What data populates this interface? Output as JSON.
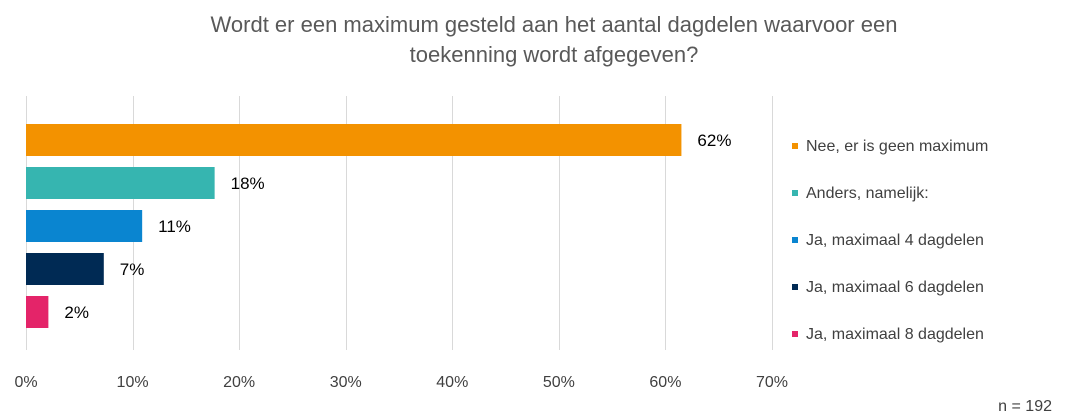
{
  "chart_data": {
    "type": "bar",
    "orientation": "horizontal",
    "title_lines": [
      "Wordt er een maximum gesteld aan het aantal dagdelen waarvoor een",
      "toekenning wordt afgegeven?"
    ],
    "categories": [
      "Nee, er is geen maximum",
      "Anders, namelijk:",
      "Ja, maximaal 4 dagdelen",
      "Ja, maximaal 6 dagdelen",
      "Ja, maximaal 8 dagdelen"
    ],
    "values": [
      61.5,
      17.7,
      10.9,
      7.3,
      2.1
    ],
    "data_labels": [
      "62%",
      "18%",
      "11%",
      "7%",
      "2%"
    ],
    "colors": [
      "#F39200",
      "#36B5B0",
      "#0A85D0",
      "#002A54",
      "#E42469"
    ],
    "xlim": [
      0,
      70
    ],
    "xticks": [
      0,
      10,
      20,
      30,
      40,
      50,
      60,
      70
    ],
    "xtick_labels": [
      "0%",
      "10%",
      "20%",
      "30%",
      "40%",
      "50%",
      "60%",
      "70%"
    ],
    "grid": true,
    "legend_position": "right",
    "note": "n = 192"
  }
}
